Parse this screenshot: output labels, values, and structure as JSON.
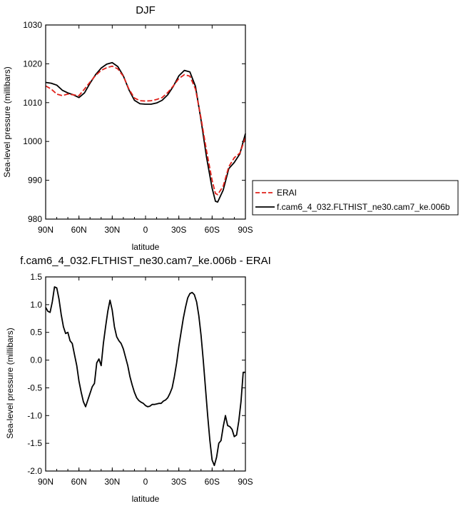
{
  "chart_data": [
    {
      "type": "line",
      "title": "DJF",
      "xlabel": "latitude",
      "ylabel": "Sea-level pressure (millibars)",
      "xlim": [
        90,
        -90
      ],
      "ylim": [
        980,
        1030
      ],
      "x_ticks": [
        90,
        60,
        30,
        0,
        -30,
        -60,
        -90
      ],
      "x_tick_labels": [
        "90N",
        "60N",
        "30N",
        "0",
        "30S",
        "60S",
        "90S"
      ],
      "y_ticks": [
        980,
        990,
        1000,
        1010,
        1020,
        1030
      ],
      "y_tick_labels": [
        "980",
        "990",
        "1000",
        "1010",
        "1020",
        "1030"
      ],
      "legend_position": "outside-right",
      "series": [
        {
          "name": "ERAI",
          "color": "#e0201a",
          "dash": true,
          "x": [
            90,
            85,
            80,
            75,
            70,
            65,
            60,
            55,
            50,
            45,
            40,
            35,
            30,
            25,
            20,
            15,
            10,
            5,
            0,
            -5,
            -10,
            -15,
            -20,
            -25,
            -30,
            -35,
            -40,
            -45,
            -50,
            -55,
            -60,
            -63,
            -65,
            -70,
            -75,
            -80,
            -85,
            -90
          ],
          "y": [
            1014.3,
            1013.5,
            1012.2,
            1011.8,
            1012.2,
            1012.0,
            1011.8,
            1013.5,
            1015.3,
            1017.0,
            1018.3,
            1019.0,
            1019.4,
            1018.7,
            1016.8,
            1013.5,
            1011.2,
            1010.5,
            1010.4,
            1010.5,
            1010.8,
            1011.3,
            1012.6,
            1014.3,
            1016.2,
            1017.2,
            1016.8,
            1013.5,
            1006.0,
            997.5,
            990.0,
            986.6,
            986.3,
            988.5,
            993.5,
            995.8,
            997.0,
            1001.0
          ]
        },
        {
          "name": "f.cam6_4_032.FLTHIST_ne30.cam7_ke.006b",
          "color": "#000000",
          "dash": false,
          "x": [
            90,
            85,
            80,
            75,
            70,
            65,
            60,
            55,
            50,
            45,
            40,
            35,
            30,
            25,
            20,
            15,
            10,
            5,
            0,
            -5,
            -10,
            -15,
            -20,
            -25,
            -30,
            -35,
            -40,
            -45,
            -50,
            -55,
            -60,
            -63,
            -65,
            -70,
            -75,
            -80,
            -85,
            -90
          ],
          "y": [
            1015.2,
            1015.0,
            1014.5,
            1013.2,
            1012.5,
            1012.0,
            1011.3,
            1012.5,
            1015.0,
            1017.2,
            1018.9,
            1019.9,
            1020.3,
            1019.3,
            1016.9,
            1013.3,
            1010.6,
            1009.7,
            1009.6,
            1009.6,
            1009.9,
            1010.6,
            1012.0,
            1014.2,
            1016.9,
            1018.3,
            1017.9,
            1014.2,
            1005.5,
            995.8,
            988.0,
            984.6,
            984.4,
            987.5,
            993.0,
            994.6,
            996.8,
            1002.0
          ]
        }
      ]
    },
    {
      "type": "line",
      "title": "f.cam6_4_032.FLTHIST_ne30.cam7_ke.006b - ERAI",
      "xlabel": "latitude",
      "ylabel": "Sea-level pressure (millibars)",
      "xlim": [
        90,
        -90
      ],
      "ylim": [
        -2.0,
        1.5
      ],
      "x_ticks": [
        90,
        60,
        30,
        0,
        -30,
        -60,
        -90
      ],
      "x_tick_labels": [
        "90N",
        "60N",
        "30N",
        "0",
        "30S",
        "60S",
        "90S"
      ],
      "y_ticks": [
        -2.0,
        -1.5,
        -1.0,
        -0.5,
        0.0,
        0.5,
        1.0,
        1.5
      ],
      "y_tick_labels": [
        "-2.0",
        "-1.5",
        "-1.0",
        "-0.5",
        "0.0",
        "0.5",
        "1.0",
        "1.5"
      ],
      "series": [
        {
          "color": "#000000",
          "x": [
            90,
            88,
            86,
            84,
            82,
            80,
            78,
            76,
            74,
            72,
            70,
            68,
            66,
            64,
            62,
            60,
            58,
            56,
            54,
            52,
            50,
            48,
            46,
            44,
            42,
            40,
            38,
            36,
            34,
            32,
            30,
            28,
            26,
            24,
            22,
            20,
            18,
            16,
            14,
            12,
            10,
            8,
            6,
            4,
            2,
            0,
            -2,
            -4,
            -6,
            -8,
            -10,
            -12,
            -14,
            -16,
            -18,
            -20,
            -22,
            -24,
            -26,
            -28,
            -30,
            -32,
            -34,
            -36,
            -38,
            -40,
            -42,
            -44,
            -46,
            -48,
            -50,
            -52,
            -54,
            -56,
            -58,
            -60,
            -62,
            -64,
            -66,
            -68,
            -70,
            -72,
            -74,
            -76,
            -78,
            -80,
            -82,
            -84,
            -86,
            -88,
            -90
          ],
          "y": [
            0.95,
            0.88,
            0.86,
            1.05,
            1.32,
            1.3,
            1.1,
            0.82,
            0.6,
            0.48,
            0.5,
            0.35,
            0.3,
            0.1,
            -0.1,
            -0.38,
            -0.58,
            -0.75,
            -0.84,
            -0.72,
            -0.6,
            -0.48,
            -0.42,
            -0.05,
            0.02,
            -0.1,
            0.3,
            0.6,
            0.88,
            1.08,
            0.9,
            0.6,
            0.42,
            0.35,
            0.3,
            0.2,
            0.05,
            -0.1,
            -0.3,
            -0.45,
            -0.58,
            -0.68,
            -0.73,
            -0.76,
            -0.78,
            -0.82,
            -0.84,
            -0.83,
            -0.8,
            -0.8,
            -0.79,
            -0.78,
            -0.78,
            -0.74,
            -0.72,
            -0.68,
            -0.6,
            -0.5,
            -0.3,
            -0.05,
            0.25,
            0.5,
            0.75,
            0.95,
            1.12,
            1.2,
            1.22,
            1.18,
            1.05,
            0.8,
            0.45,
            0.0,
            -0.5,
            -1.0,
            -1.45,
            -1.8,
            -1.9,
            -1.75,
            -1.5,
            -1.45,
            -1.2,
            -1.0,
            -1.18,
            -1.2,
            -1.25,
            -1.38,
            -1.35,
            -1.1,
            -0.75,
            -0.22,
            -0.22
          ]
        }
      ]
    }
  ]
}
